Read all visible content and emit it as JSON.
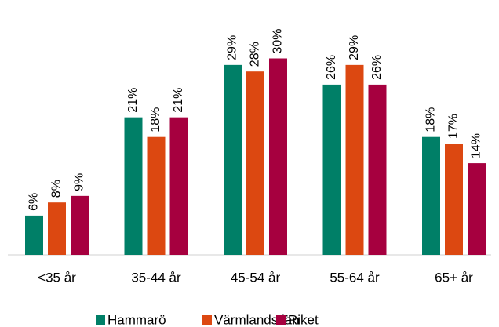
{
  "chart_data": {
    "type": "bar",
    "categories": [
      "<35 år",
      "35-44 år",
      "45-54 år",
      "55-64 år",
      "65+ år"
    ],
    "series": [
      {
        "name": "Hammarö",
        "color": "#007f67",
        "values": [
          6,
          21,
          29,
          26,
          18
        ],
        "value_labels": [
          "6%",
          "21%",
          "29%",
          "26%",
          "18%"
        ]
      },
      {
        "name": "Värmlands län",
        "color": "#dc4811",
        "values": [
          8,
          18,
          28,
          29,
          17
        ],
        "value_labels": [
          "8%",
          "18%",
          "28%",
          "29%",
          "17%"
        ]
      },
      {
        "name": "Riket",
        "color": "#a6003f",
        "values": [
          9,
          21,
          30,
          26,
          14
        ],
        "value_labels": [
          "9%",
          "21%",
          "30%",
          "26%",
          "14%"
        ]
      }
    ],
    "legend": "bottom"
  }
}
